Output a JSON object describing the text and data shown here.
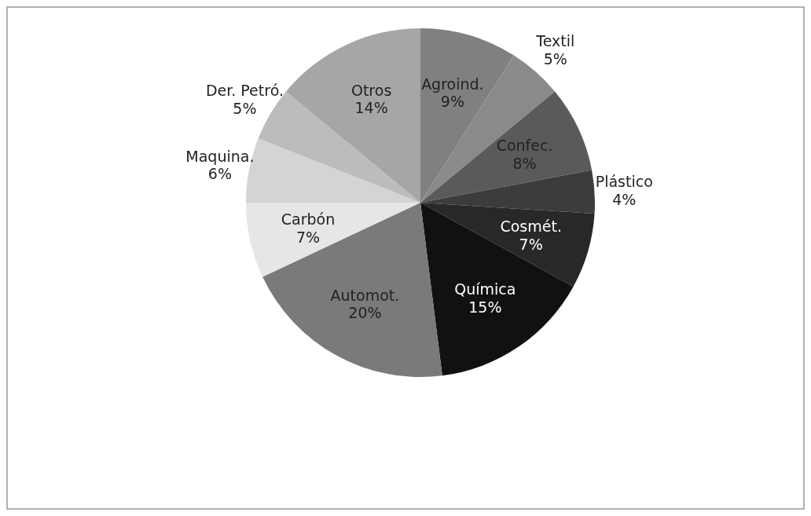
{
  "chart_data": {
    "type": "pie",
    "categories": [
      "Agroind.",
      "Textil",
      "Confec.",
      "Plástico",
      "Cosmét.",
      "Química",
      "Automot.",
      "Carbón",
      "Maquina.",
      "Der. Petró.",
      "Otros"
    ],
    "values": [
      9,
      5,
      8,
      4,
      7,
      15,
      20,
      7,
      6,
      5,
      14
    ],
    "colors": [
      "#808080",
      "#8a8a8a",
      "#5a5a5a",
      "#3c3c3c",
      "#282828",
      "#111111",
      "#7a7a7a",
      "#e6e6e6",
      "#d4d4d4",
      "#bcbcbc",
      "#a6a6a6"
    ],
    "value_labels": [
      "9%",
      "5%",
      "8%",
      "4%",
      "7%",
      "15%",
      "20%",
      "7%",
      "6%",
      "5%",
      "14%"
    ]
  }
}
